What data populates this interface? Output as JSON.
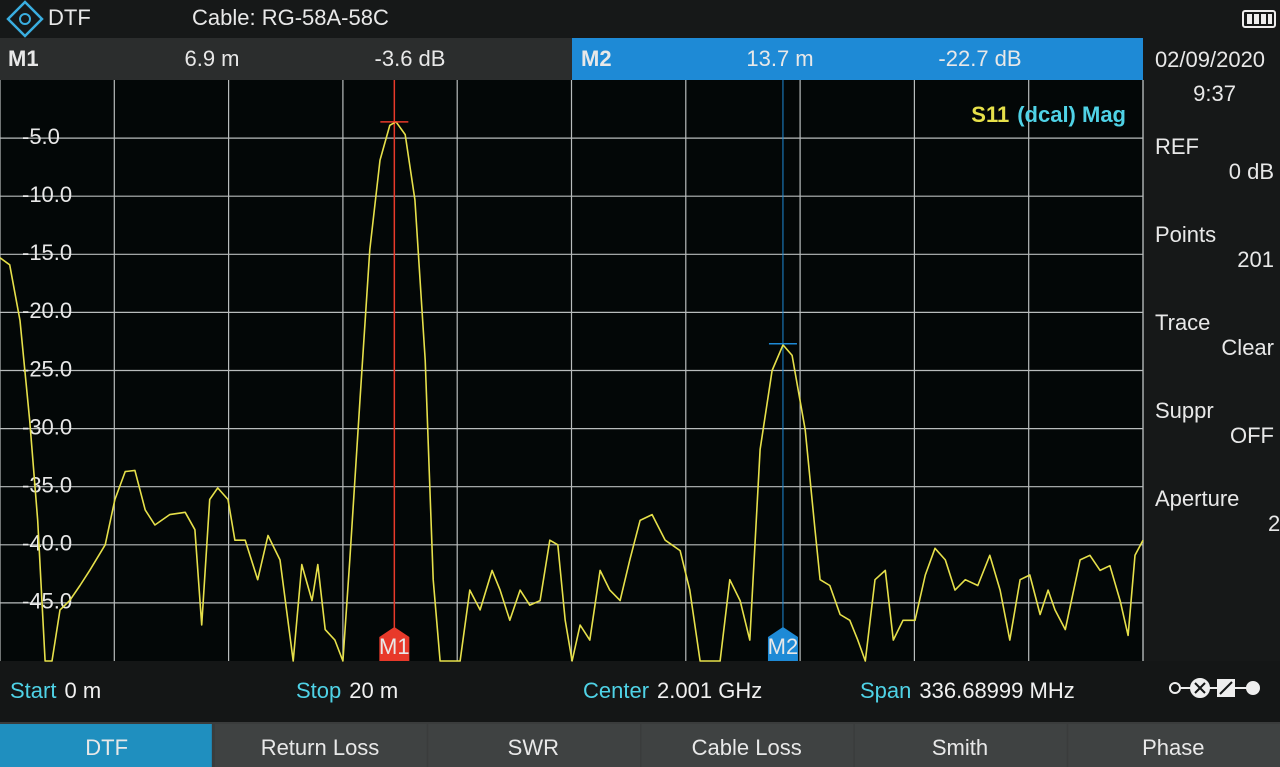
{
  "header": {
    "mode": "DTF",
    "cable": "Cable: RG-58A-58C"
  },
  "datetime": {
    "date": "02/09/2020",
    "time": "9:37"
  },
  "chart_data": {
    "type": "line",
    "trace_label": {
      "param": "S11",
      "detail": "(dcal) Mag"
    },
    "xlim": [
      0,
      20
    ],
    "xticks": [
      0,
      2,
      4,
      6,
      8,
      10,
      12,
      14,
      16,
      18,
      20
    ],
    "ylim": [
      -50,
      0
    ],
    "yticks": [
      {
        "value": -5,
        "label": "-5.0"
      },
      {
        "value": -10,
        "label": "-10.0"
      },
      {
        "value": -15,
        "label": "-15.0"
      },
      {
        "value": -20,
        "label": "-20.0"
      },
      {
        "value": -25,
        "label": "-25.0"
      },
      {
        "value": -30,
        "label": "-30.0"
      },
      {
        "value": -35,
        "label": "-35.0"
      },
      {
        "value": -40,
        "label": "-40.0"
      },
      {
        "value": -45,
        "label": "-45.0"
      }
    ],
    "grid": true,
    "series": [
      {
        "color": "#e6e04a",
        "x": [
          0,
          0.17,
          0.35,
          0.52,
          0.66,
          0.79,
          0.91,
          1.05,
          1.22,
          1.4,
          1.57,
          1.84,
          2.01,
          2.19,
          2.36,
          2.54,
          2.71,
          2.97,
          3.24,
          3.41,
          3.53,
          3.67,
          3.81,
          3.99,
          4.11,
          4.29,
          4.51,
          4.69,
          4.9,
          5.13,
          5.28,
          5.46,
          5.56,
          5.69,
          5.86,
          6.0,
          6.12,
          6.3,
          6.47,
          6.65,
          6.82,
          6.93,
          7.09,
          7.26,
          7.44,
          7.58,
          7.7,
          8.05,
          8.22,
          8.4,
          8.61,
          8.75,
          8.92,
          9.1,
          9.27,
          9.45,
          9.62,
          9.76,
          9.89,
          10.01,
          10.15,
          10.32,
          10.5,
          10.67,
          10.85,
          11.02,
          11.2,
          11.41,
          11.64,
          11.9,
          12.07,
          12.25,
          12.6,
          12.77,
          12.95,
          13.12,
          13.3,
          13.51,
          13.7,
          13.86,
          14.09,
          14.26,
          14.35,
          14.52,
          14.7,
          14.87,
          15.01,
          15.14,
          15.31,
          15.49,
          15.63,
          15.8,
          16.01,
          16.19,
          16.36,
          16.54,
          16.71,
          16.89,
          17.11,
          17.32,
          17.5,
          17.67,
          17.85,
          18.02,
          18.2,
          18.34,
          18.46,
          18.64,
          18.9,
          19.07,
          19.25,
          19.42,
          19.6,
          19.74,
          19.86,
          20
        ],
        "values": [
          -15.3,
          -15.9,
          -20.7,
          -29.3,
          -37.9,
          -50,
          -50,
          -45.6,
          -44.8,
          -43.5,
          -42.2,
          -40.0,
          -36.1,
          -33.7,
          -33.6,
          -37.0,
          -38.3,
          -37.4,
          -37.2,
          -38.7,
          -46.9,
          -36.1,
          -35.1,
          -36.1,
          -39.6,
          -39.6,
          -43.0,
          -39.2,
          -41.3,
          -50,
          -41.7,
          -44.8,
          -41.7,
          -47.3,
          -48.2,
          -50,
          -41.3,
          -27.5,
          -14.6,
          -6.9,
          -3.9,
          -3.6,
          -4.7,
          -10.3,
          -24.1,
          -43.0,
          -50,
          -50,
          -43.9,
          -45.6,
          -42.2,
          -43.9,
          -46.5,
          -43.9,
          -45.2,
          -44.8,
          -39.6,
          -40.0,
          -46.5,
          -50,
          -46.9,
          -48.2,
          -42.2,
          -43.9,
          -44.8,
          -41.3,
          -37.9,
          -37.4,
          -39.6,
          -40.5,
          -43.9,
          -50,
          -50,
          -43.0,
          -44.8,
          -48.2,
          -31.8,
          -25.0,
          -22.8,
          -23.7,
          -30.1,
          -38.7,
          -43.0,
          -43.5,
          -46.0,
          -46.5,
          -48.2,
          -50,
          -43.0,
          -42.2,
          -48.2,
          -46.5,
          -46.5,
          -42.6,
          -40.3,
          -41.3,
          -43.9,
          -43.0,
          -43.5,
          -40.9,
          -43.9,
          -48.2,
          -43.0,
          -42.6,
          -46.0,
          -43.9,
          -45.6,
          -47.3,
          -41.3,
          -40.9,
          -42.2,
          -41.8,
          -44.8,
          -47.8,
          -40.9,
          -39.6
        ]
      }
    ],
    "markers": [
      {
        "name": "M1",
        "x": 6.9,
        "value": -3.6,
        "x_label": "6.9 m",
        "value_label": "-3.6 dB",
        "color": "#e8392a",
        "active": false
      },
      {
        "name": "M2",
        "x": 13.7,
        "value": -22.7,
        "x_label": "13.7 m",
        "value_label": "-22.7 dB",
        "color": "#1e8ad6",
        "active": true
      }
    ]
  },
  "side_panel": [
    {
      "label": "REF",
      "value": "0 dB"
    },
    {
      "label": "Points",
      "value": "201"
    },
    {
      "label": "Trace",
      "value": "Clear"
    },
    {
      "label": "Suppr",
      "value": "OFF"
    },
    {
      "label": "Aperture",
      "value": "2",
      "disabled": true
    }
  ],
  "footer": [
    {
      "label": "Start",
      "value": "0 m"
    },
    {
      "label": "Stop",
      "value": "20 m"
    },
    {
      "label": "Center",
      "value": "2.001 GHz"
    },
    {
      "label": "Span",
      "value": "336.68999 MHz"
    }
  ],
  "tabs": [
    {
      "label": "DTF",
      "active": true
    },
    {
      "label": "Return Loss"
    },
    {
      "label": "SWR"
    },
    {
      "label": "Cable Loss"
    },
    {
      "label": "Smith"
    },
    {
      "label": "Phase"
    }
  ]
}
